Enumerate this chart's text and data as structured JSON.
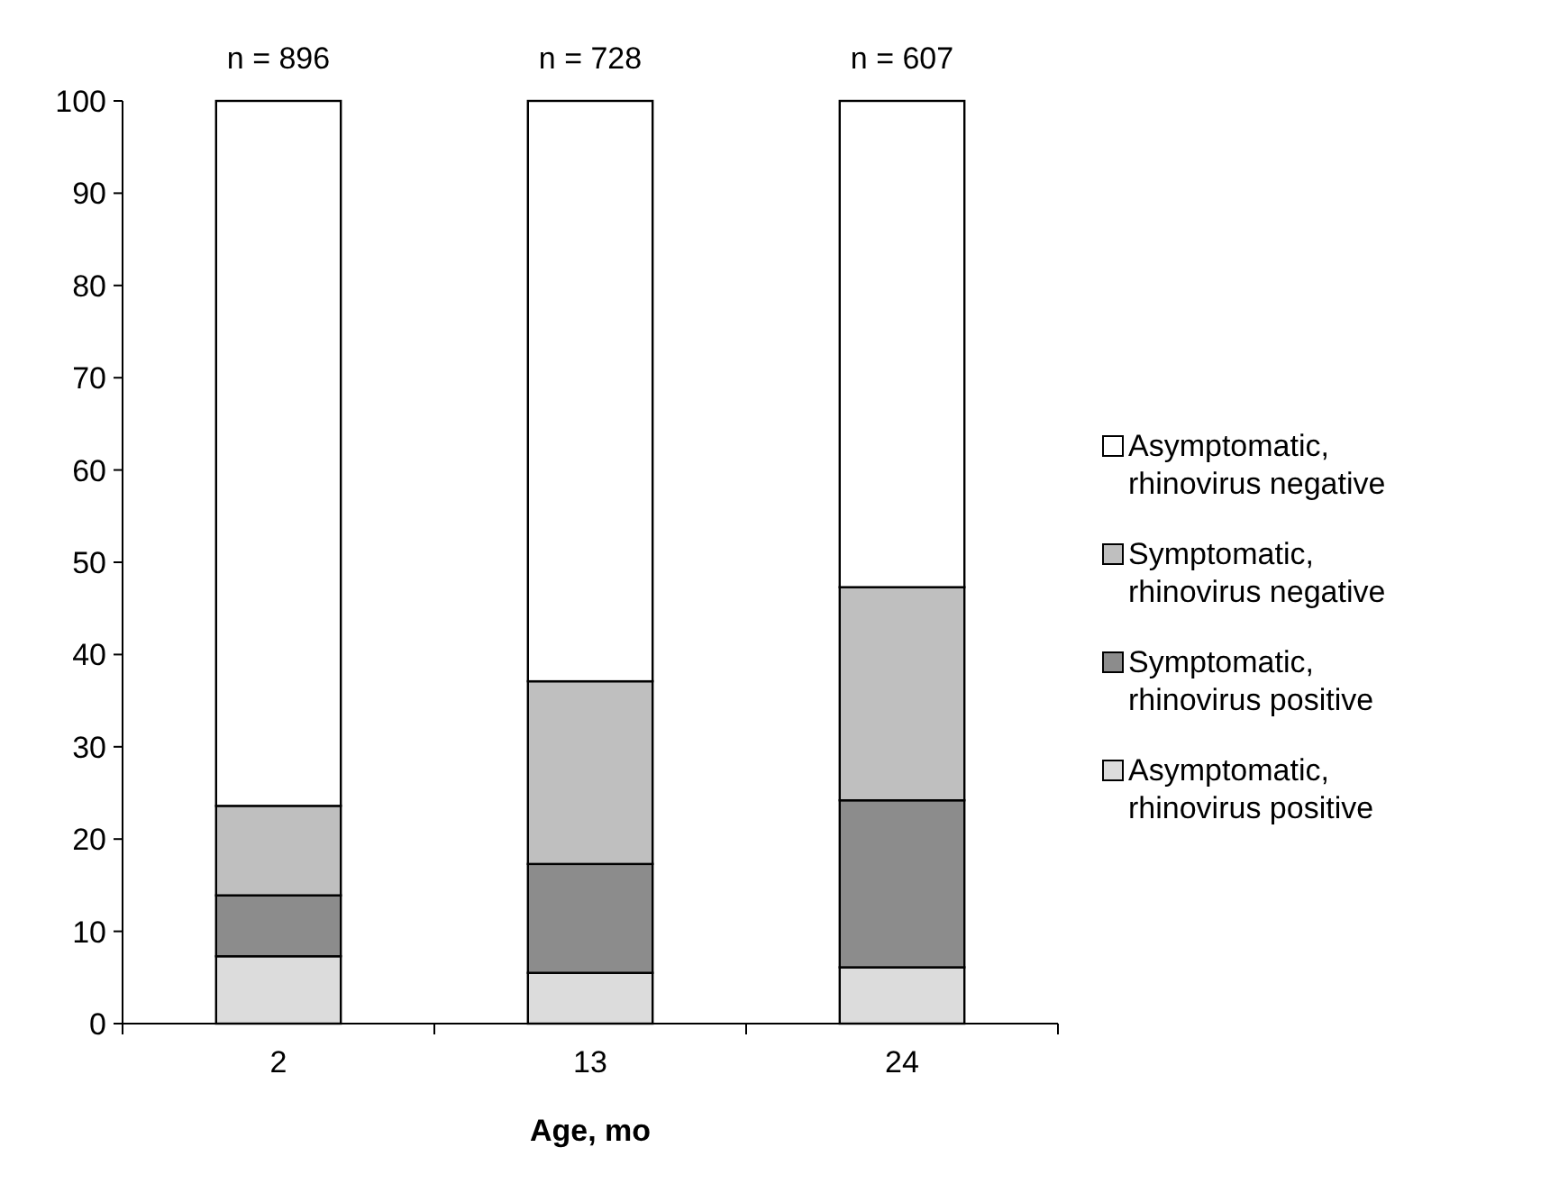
{
  "chart_data": {
    "type": "bar",
    "stacked": true,
    "xlabel": "Age, mo",
    "categories": [
      "2",
      "13",
      "24"
    ],
    "series": [
      {
        "name": "Asymptomatic, rhinovirus positive",
        "color": "#dcdcdc",
        "values": [
          7.3,
          5.5,
          6.1
        ]
      },
      {
        "name": "Symptomatic, rhinovirus positive",
        "color": "#8c8c8c",
        "values": [
          6.6,
          11.8,
          18.1
        ]
      },
      {
        "name": "Symptomatic, rhinovirus negative",
        "color": "#bfbfbf",
        "values": [
          9.7,
          19.8,
          23.1
        ]
      },
      {
        "name": "Asymptomatic, rhinovirus negative",
        "color": "#ffffff",
        "values": [
          76.4,
          62.9,
          52.7
        ]
      }
    ],
    "ylim": [
      0,
      100
    ],
    "yticks": [
      0,
      10,
      20,
      30,
      40,
      50,
      60,
      70,
      80,
      90,
      100
    ],
    "legend": "right",
    "grid": false,
    "annotations": [
      {
        "text": "n = 896",
        "x": "2",
        "y": 100
      },
      {
        "text": "n = 728",
        "x": "13",
        "y": 100
      },
      {
        "text": "n = 607",
        "x": "24",
        "y": 100
      }
    ]
  }
}
